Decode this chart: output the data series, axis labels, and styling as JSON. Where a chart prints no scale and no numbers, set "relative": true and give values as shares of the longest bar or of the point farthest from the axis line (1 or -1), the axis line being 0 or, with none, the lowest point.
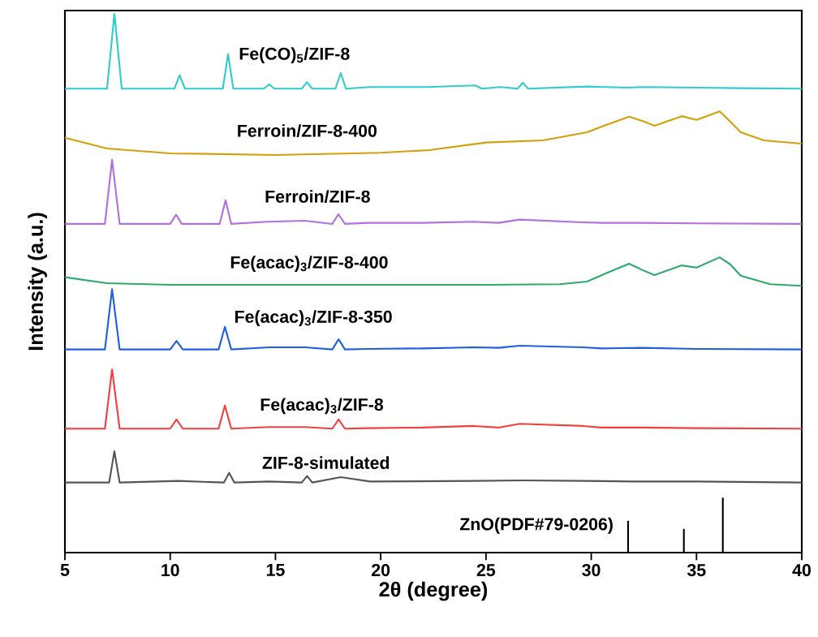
{
  "chart_data": {
    "type": "line",
    "xlabel": "2θ (degree)",
    "ylabel": "Intensity (a.u.)",
    "relative": true,
    "xlim": [
      5,
      40
    ],
    "xticks": [
      5,
      10,
      15,
      20,
      25,
      30,
      35,
      40
    ],
    "grid": false,
    "marker": "none",
    "line_style": "solid",
    "series": [
      {
        "name": "Fe(CO)$_{5}$/ZIF-8",
        "color": "#33cccc",
        "x": [
          5,
          7.0,
          7.35,
          7.7,
          10.2,
          10.45,
          10.7,
          12.5,
          12.75,
          13.0,
          14.45,
          14.7,
          14.95,
          16.25,
          16.5,
          16.75,
          17.85,
          18.1,
          18.35,
          19.5,
          22.2,
          24.5,
          24.8,
          25.7,
          26.5,
          26.75,
          27.0,
          29.8,
          30.6,
          31.6,
          32.5,
          35.0,
          37.0,
          40
        ],
        "values": [
          0.861,
          0.861,
          1.0,
          0.861,
          0.861,
          0.886,
          0.861,
          0.861,
          0.925,
          0.861,
          0.861,
          0.869,
          0.861,
          0.861,
          0.873,
          0.861,
          0.861,
          0.89,
          0.861,
          0.864,
          0.864,
          0.867,
          0.861,
          0.864,
          0.861,
          0.872,
          0.861,
          0.865,
          0.864,
          0.863,
          0.864,
          0.863,
          0.862,
          0.861
        ]
      },
      {
        "name": "Ferroin/ZIF-8-400",
        "color": "#d4a00a",
        "x": [
          5,
          7,
          10,
          15,
          20,
          22.3,
          25,
          27.7,
          29.8,
          30.6,
          31.8,
          32.5,
          33.0,
          34.3,
          35.0,
          36.1,
          36.6,
          37.1,
          38.2,
          40
        ],
        "values": [
          0.77,
          0.75,
          0.741,
          0.738,
          0.742,
          0.747,
          0.761,
          0.765,
          0.78,
          0.792,
          0.809,
          0.8,
          0.792,
          0.81,
          0.803,
          0.819,
          0.8,
          0.78,
          0.765,
          0.759
        ]
      },
      {
        "name": "Ferroin/ZIF-8",
        "color": "#b070e0",
        "x": [
          5,
          6.9,
          7.24,
          7.6,
          10.0,
          10.28,
          10.55,
          12.35,
          12.63,
          12.9,
          14.6,
          16.4,
          17.7,
          17.99,
          18.3,
          19.4,
          22.0,
          24.4,
          25.6,
          26.6,
          29.6,
          30.5,
          32.3,
          35.0,
          40
        ],
        "values": [
          0.61,
          0.61,
          0.729,
          0.61,
          0.61,
          0.627,
          0.61,
          0.61,
          0.654,
          0.61,
          0.614,
          0.616,
          0.61,
          0.628,
          0.61,
          0.612,
          0.612,
          0.614,
          0.612,
          0.618,
          0.613,
          0.612,
          0.612,
          0.611,
          0.61
        ]
      },
      {
        "name": "Fe(acac)$_{3}$/ZIF-8-400",
        "color": "#2eaa6a",
        "x": [
          5,
          7,
          10,
          15,
          20,
          25,
          28.5,
          29.8,
          30.8,
          31.8,
          32.4,
          33.0,
          34.3,
          35.0,
          36.1,
          36.6,
          37.1,
          38.5,
          40
        ],
        "values": [
          0.511,
          0.5,
          0.497,
          0.497,
          0.497,
          0.497,
          0.498,
          0.503,
          0.52,
          0.536,
          0.525,
          0.515,
          0.533,
          0.529,
          0.548,
          0.535,
          0.514,
          0.498,
          0.495
        ]
      },
      {
        "name": "Fe(acac)$_{3}$/ZIF-8-350",
        "color": "#1f5fe0",
        "x": [
          5,
          6.9,
          7.24,
          7.6,
          10.0,
          10.3,
          10.6,
          12.3,
          12.6,
          12.9,
          14.7,
          16.4,
          17.7,
          18.0,
          18.3,
          19.4,
          22.0,
          24.4,
          25.6,
          26.6,
          29.6,
          30.5,
          32.4,
          35.0,
          40
        ],
        "values": [
          0.377,
          0.377,
          0.489,
          0.377,
          0.377,
          0.393,
          0.377,
          0.377,
          0.419,
          0.377,
          0.381,
          0.381,
          0.377,
          0.396,
          0.377,
          0.378,
          0.379,
          0.381,
          0.38,
          0.384,
          0.381,
          0.379,
          0.38,
          0.378,
          0.377
        ]
      },
      {
        "name": "Fe(acac)$_{3}$/ZIF-8",
        "color": "#f04040",
        "x": [
          5,
          6.9,
          7.24,
          7.6,
          10.0,
          10.3,
          10.6,
          12.3,
          12.6,
          12.9,
          14.7,
          16.4,
          17.7,
          18.0,
          18.3,
          19.4,
          22.0,
          24.4,
          25.6,
          26.6,
          29.6,
          30.5,
          32.4,
          35.0,
          40
        ],
        "values": [
          0.23,
          0.23,
          0.34,
          0.23,
          0.23,
          0.247,
          0.23,
          0.23,
          0.273,
          0.23,
          0.233,
          0.233,
          0.23,
          0.247,
          0.23,
          0.231,
          0.232,
          0.235,
          0.232,
          0.239,
          0.235,
          0.232,
          0.232,
          0.231,
          0.23
        ]
      },
      {
        "name": "ZIF-8-simulated",
        "color": "#555555",
        "x": [
          5,
          7.1,
          7.35,
          7.6,
          10.4,
          12.55,
          12.8,
          13.05,
          14.7,
          16.25,
          16.5,
          16.75,
          18.1,
          19.5,
          24.5,
          26.7,
          29.7,
          32.0,
          35.0,
          40
        ],
        "values": [
          0.13,
          0.13,
          0.188,
          0.13,
          0.133,
          0.13,
          0.148,
          0.13,
          0.132,
          0.13,
          0.142,
          0.13,
          0.14,
          0.132,
          0.133,
          0.134,
          0.133,
          0.132,
          0.132,
          0.13
        ]
      },
      {
        "name": "ZnO(PDF#79-0206)",
        "type": "bar",
        "color": "#000000",
        "x": [
          31.75,
          34.4,
          36.25
        ],
        "values": [
          0.059,
          0.044,
          0.102
        ]
      }
    ]
  }
}
